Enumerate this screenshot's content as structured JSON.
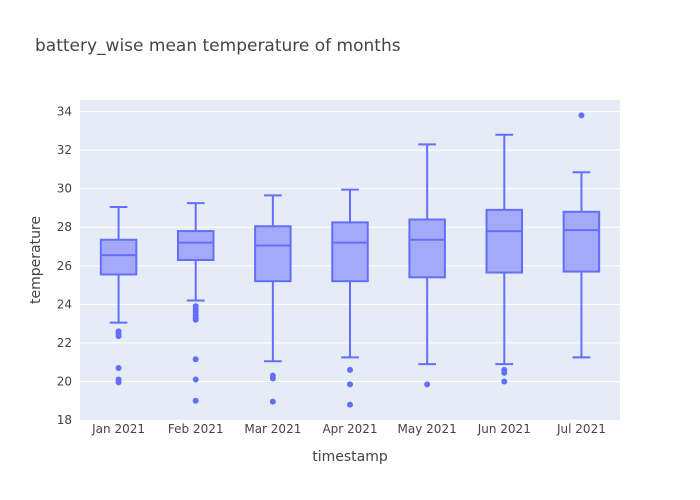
{
  "chart_data": {
    "type": "box",
    "title": "battery_wise mean temperature of months",
    "xlabel": "timestamp",
    "ylabel": "temperature",
    "ylim": [
      18,
      34.6
    ],
    "yticks": [
      18,
      20,
      22,
      24,
      26,
      28,
      30,
      32,
      34
    ],
    "grid": true,
    "colors": {
      "plot_bg": "#e5ecf6",
      "grid": "#ffffff",
      "box_line": "#636efa",
      "box_fill": "#a5aaf8"
    },
    "categories": [
      "Jan 2021",
      "Feb 2021",
      "Mar 2021",
      "Apr 2021",
      "May 2021",
      "Jun 2021",
      "Jul 2021"
    ],
    "boxes": [
      {
        "category": "Jan 2021",
        "lowerfence": 23.05,
        "q1": 25.55,
        "median": 26.55,
        "q3": 27.35,
        "upperfence": 29.05,
        "outliers": [
          22.6,
          22.5,
          22.35,
          20.7,
          20.1,
          19.95
        ]
      },
      {
        "category": "Feb 2021",
        "lowerfence": 24.2,
        "q1": 26.3,
        "median": 27.2,
        "q3": 27.8,
        "upperfence": 29.25,
        "outliers": [
          23.9,
          23.75,
          23.6,
          23.45,
          23.3,
          23.2,
          21.15,
          20.1,
          19.0
        ]
      },
      {
        "category": "Mar 2021",
        "lowerfence": 21.05,
        "q1": 25.2,
        "median": 27.05,
        "q3": 28.05,
        "upperfence": 29.65,
        "outliers": [
          20.3,
          20.15,
          18.95
        ]
      },
      {
        "category": "Apr 2021",
        "lowerfence": 21.25,
        "q1": 25.2,
        "median": 27.2,
        "q3": 28.25,
        "upperfence": 29.95,
        "outliers": [
          20.6,
          19.85,
          18.8
        ]
      },
      {
        "category": "May 2021",
        "lowerfence": 20.9,
        "q1": 25.4,
        "median": 27.35,
        "q3": 28.4,
        "upperfence": 32.3,
        "outliers": [
          19.85
        ]
      },
      {
        "category": "Jun 2021",
        "lowerfence": 20.9,
        "q1": 25.65,
        "median": 27.8,
        "q3": 28.9,
        "upperfence": 32.8,
        "outliers": [
          20.6,
          20.45,
          20.0
        ]
      },
      {
        "category": "Jul 2021",
        "lowerfence": 21.25,
        "q1": 25.7,
        "median": 27.85,
        "q3": 28.8,
        "upperfence": 30.85,
        "outliers": [
          33.8
        ]
      }
    ]
  }
}
